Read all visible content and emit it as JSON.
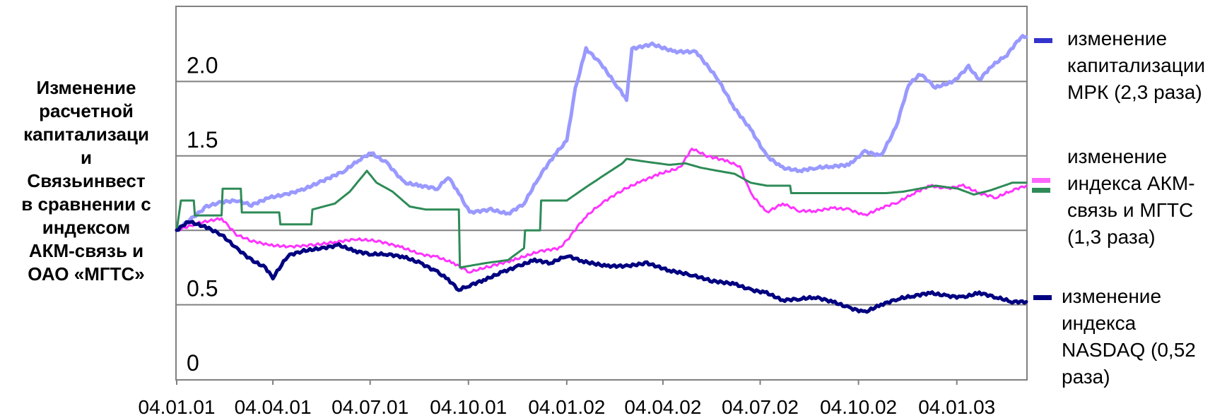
{
  "chart_data": {
    "type": "line",
    "ylabel": "Изменение\nрасчетной\nкапитализаци\nи\nСвязьинвест\nв сравнении с\nиндексом\nАКМ-связь и\nОАО «МГТС»",
    "ylim": [
      0,
      2.5
    ],
    "ytick_labels": [
      "0",
      "0.5",
      "1.5",
      "2.0"
    ],
    "ytick_values": [
      0,
      0.5,
      1.5,
      2.0
    ],
    "gridlines_at": [
      0.5,
      1.0,
      1.5,
      2.0
    ],
    "grid": true,
    "xlim": [
      "2001-01-04",
      "2003-03-10"
    ],
    "x_ticks": [
      "2001-01-04",
      "2001-04-04",
      "2001-07-04",
      "2001-10-04",
      "2002-01-04",
      "2002-04-04",
      "2002-07-04",
      "2002-10-04",
      "2003-01-04"
    ],
    "x_tick_labels": [
      "04.01.01",
      "04.04.01",
      "04.07.01",
      "04.10.01",
      "04.01.02",
      "04.04.02",
      "04.07.02",
      "04.10.02",
      "04.01.03"
    ],
    "legend_placement": "right",
    "legend": [
      {
        "text": "изменение\nкапитализации\nМРК (2,3 раза)",
        "color": "#3333cc"
      },
      {
        "text": "изменение\nиндекса АКМ-\nсвязь и МГТС\n(1,3 раза)",
        "color": "#ff66ff",
        "color2": "#2e8b57"
      },
      {
        "text": "изменение\nиндекса\nNASDAQ (0,52\nраза)",
        "color": "#000080"
      }
    ],
    "series": [
      {
        "color": "#9999ff",
        "stroke": "light-blue",
        "points": [
          [
            "2001-01-04",
            1.0
          ],
          [
            "2001-01-18",
            1.08
          ],
          [
            "2001-02-01",
            1.16
          ],
          [
            "2001-02-15",
            1.19
          ],
          [
            "2001-03-01",
            1.2
          ],
          [
            "2001-03-15",
            1.17
          ],
          [
            "2001-04-01",
            1.22
          ],
          [
            "2001-04-15",
            1.24
          ],
          [
            "2001-05-01",
            1.27
          ],
          [
            "2001-05-20",
            1.33
          ],
          [
            "2001-06-10",
            1.4
          ],
          [
            "2001-06-25",
            1.48
          ],
          [
            "2001-07-05",
            1.52
          ],
          [
            "2001-07-20",
            1.45
          ],
          [
            "2001-08-05",
            1.32
          ],
          [
            "2001-08-20",
            1.3
          ],
          [
            "2001-09-05",
            1.28
          ],
          [
            "2001-09-15",
            1.36
          ],
          [
            "2001-09-25",
            1.25
          ],
          [
            "2001-10-05",
            1.12
          ],
          [
            "2001-10-25",
            1.14
          ],
          [
            "2001-11-10",
            1.11
          ],
          [
            "2001-11-25",
            1.18
          ],
          [
            "2001-12-10",
            1.37
          ],
          [
            "2001-12-25",
            1.52
          ],
          [
            "2002-01-04",
            1.6
          ],
          [
            "2002-01-12",
            1.95
          ],
          [
            "2002-01-22",
            2.22
          ],
          [
            "2002-02-05",
            2.12
          ],
          [
            "2002-02-20",
            1.97
          ],
          [
            "2002-03-01",
            1.88
          ],
          [
            "2002-03-06",
            2.22
          ],
          [
            "2002-03-25",
            2.25
          ],
          [
            "2002-04-15",
            2.2
          ],
          [
            "2002-05-05",
            2.2
          ],
          [
            "2002-05-25",
            2.02
          ],
          [
            "2002-06-10",
            1.82
          ],
          [
            "2002-06-25",
            1.68
          ],
          [
            "2002-07-10",
            1.5
          ],
          [
            "2002-07-25",
            1.42
          ],
          [
            "2002-08-10",
            1.4
          ],
          [
            "2002-08-25",
            1.42
          ],
          [
            "2002-09-10",
            1.43
          ],
          [
            "2002-09-25",
            1.44
          ],
          [
            "2002-10-10",
            1.53
          ],
          [
            "2002-10-25",
            1.5
          ],
          [
            "2002-11-08",
            1.69
          ],
          [
            "2002-11-20",
            1.98
          ],
          [
            "2002-12-01",
            2.05
          ],
          [
            "2002-12-15",
            1.96
          ],
          [
            "2003-01-01",
            2.0
          ],
          [
            "2003-01-15",
            2.1
          ],
          [
            "2003-01-25",
            2.01
          ],
          [
            "2003-02-05",
            2.1
          ],
          [
            "2003-02-20",
            2.18
          ],
          [
            "2003-03-05",
            2.3
          ],
          [
            "2003-03-10",
            2.3
          ]
        ]
      },
      {
        "color": "#ff33ff",
        "stroke": "magenta",
        "points": [
          [
            "2001-01-04",
            1.0
          ],
          [
            "2001-01-25",
            1.05
          ],
          [
            "2001-02-15",
            1.08
          ],
          [
            "2001-03-01",
            0.97
          ],
          [
            "2001-03-15",
            0.93
          ],
          [
            "2001-04-01",
            0.9
          ],
          [
            "2001-04-20",
            0.89
          ],
          [
            "2001-05-10",
            0.9
          ],
          [
            "2001-06-01",
            0.92
          ],
          [
            "2001-06-20",
            0.94
          ],
          [
            "2001-07-10",
            0.93
          ],
          [
            "2001-08-01",
            0.89
          ],
          [
            "2001-08-20",
            0.84
          ],
          [
            "2001-09-05",
            0.82
          ],
          [
            "2001-09-20",
            0.78
          ],
          [
            "2001-10-05",
            0.72
          ],
          [
            "2001-10-25",
            0.76
          ],
          [
            "2001-11-15",
            0.8
          ],
          [
            "2001-12-10",
            0.86
          ],
          [
            "2001-12-28",
            0.88
          ],
          [
            "2002-01-04",
            0.93
          ],
          [
            "2002-01-20",
            1.08
          ],
          [
            "2002-02-05",
            1.18
          ],
          [
            "2002-02-25",
            1.27
          ],
          [
            "2002-03-15",
            1.33
          ],
          [
            "2002-04-01",
            1.38
          ],
          [
            "2002-04-20",
            1.42
          ],
          [
            "2002-05-01",
            1.55
          ],
          [
            "2002-05-15",
            1.5
          ],
          [
            "2002-06-01",
            1.47
          ],
          [
            "2002-06-15",
            1.43
          ],
          [
            "2002-06-25",
            1.25
          ],
          [
            "2002-07-10",
            1.12
          ],
          [
            "2002-07-25",
            1.18
          ],
          [
            "2002-08-10",
            1.13
          ],
          [
            "2002-08-25",
            1.13
          ],
          [
            "2002-09-10",
            1.15
          ],
          [
            "2002-09-25",
            1.14
          ],
          [
            "2002-10-10",
            1.1
          ],
          [
            "2002-10-25",
            1.15
          ],
          [
            "2002-11-10",
            1.19
          ],
          [
            "2002-11-25",
            1.25
          ],
          [
            "2002-12-10",
            1.3
          ],
          [
            "2002-12-25",
            1.28
          ],
          [
            "2003-01-10",
            1.3
          ],
          [
            "2003-01-25",
            1.25
          ],
          [
            "2003-02-10",
            1.22
          ],
          [
            "2003-02-25",
            1.27
          ],
          [
            "2003-03-10",
            1.3
          ]
        ]
      },
      {
        "color": "#2e8b57",
        "stroke": "green",
        "points": [
          [
            "2001-01-04",
            1.0
          ],
          [
            "2001-01-08",
            1.2
          ],
          [
            "2001-01-20",
            1.2
          ],
          [
            "2001-01-21",
            1.1
          ],
          [
            "2001-02-15",
            1.1
          ],
          [
            "2001-02-16",
            1.28
          ],
          [
            "2001-03-05",
            1.28
          ],
          [
            "2001-03-06",
            1.12
          ],
          [
            "2001-04-10",
            1.12
          ],
          [
            "2001-04-11",
            1.04
          ],
          [
            "2001-05-10",
            1.04
          ],
          [
            "2001-05-11",
            1.14
          ],
          [
            "2001-06-01",
            1.18
          ],
          [
            "2001-06-15",
            1.26
          ],
          [
            "2001-07-01",
            1.4
          ],
          [
            "2001-07-10",
            1.32
          ],
          [
            "2001-07-25",
            1.26
          ],
          [
            "2001-08-10",
            1.16
          ],
          [
            "2001-08-25",
            1.14
          ],
          [
            "2001-09-10",
            1.14
          ],
          [
            "2001-09-25",
            1.14
          ],
          [
            "2001-09-26",
            0.75
          ],
          [
            "2001-10-20",
            0.78
          ],
          [
            "2001-11-10",
            0.8
          ],
          [
            "2001-11-25",
            0.88
          ],
          [
            "2001-11-26",
            1.0
          ],
          [
            "2001-12-10",
            1.0
          ],
          [
            "2001-12-11",
            1.2
          ],
          [
            "2002-01-04",
            1.2
          ],
          [
            "2002-01-20",
            1.28
          ],
          [
            "2002-02-10",
            1.38
          ],
          [
            "2002-02-25",
            1.45
          ],
          [
            "2002-03-01",
            1.48
          ],
          [
            "2002-03-20",
            1.46
          ],
          [
            "2002-04-10",
            1.44
          ],
          [
            "2002-04-25",
            1.45
          ],
          [
            "2002-05-10",
            1.42
          ],
          [
            "2002-05-25",
            1.4
          ],
          [
            "2002-06-10",
            1.38
          ],
          [
            "2002-06-25",
            1.32
          ],
          [
            "2002-07-10",
            1.3
          ],
          [
            "2002-08-01",
            1.3
          ],
          [
            "2002-08-02",
            1.25
          ],
          [
            "2002-09-20",
            1.25
          ],
          [
            "2002-10-15",
            1.25
          ],
          [
            "2002-10-30",
            1.25
          ],
          [
            "2002-11-15",
            1.26
          ],
          [
            "2002-11-30",
            1.28
          ],
          [
            "2002-12-15",
            1.3
          ],
          [
            "2003-01-05",
            1.28
          ],
          [
            "2003-01-20",
            1.24
          ],
          [
            "2003-02-05",
            1.27
          ],
          [
            "2003-02-25",
            1.32
          ],
          [
            "2003-03-10",
            1.32
          ]
        ]
      },
      {
        "color": "#000080",
        "stroke": "navy",
        "points": [
          [
            "2001-01-04",
            1.0
          ],
          [
            "2001-01-15",
            1.06
          ],
          [
            "2001-02-01",
            1.02
          ],
          [
            "2001-02-15",
            0.97
          ],
          [
            "2001-03-01",
            0.88
          ],
          [
            "2001-03-15",
            0.8
          ],
          [
            "2001-03-28",
            0.75
          ],
          [
            "2001-04-04",
            0.68
          ],
          [
            "2001-04-18",
            0.83
          ],
          [
            "2001-05-01",
            0.86
          ],
          [
            "2001-05-20",
            0.88
          ],
          [
            "2001-06-05",
            0.9
          ],
          [
            "2001-06-20",
            0.86
          ],
          [
            "2001-07-05",
            0.84
          ],
          [
            "2001-07-20",
            0.84
          ],
          [
            "2001-08-05",
            0.82
          ],
          [
            "2001-08-20",
            0.78
          ],
          [
            "2001-09-05",
            0.72
          ],
          [
            "2001-09-15",
            0.67
          ],
          [
            "2001-09-25",
            0.6
          ],
          [
            "2001-10-05",
            0.63
          ],
          [
            "2001-10-20",
            0.67
          ],
          [
            "2001-11-05",
            0.72
          ],
          [
            "2001-11-20",
            0.76
          ],
          [
            "2001-12-05",
            0.8
          ],
          [
            "2001-12-20",
            0.78
          ],
          [
            "2002-01-04",
            0.83
          ],
          [
            "2002-01-20",
            0.79
          ],
          [
            "2002-02-10",
            0.76
          ],
          [
            "2002-03-01",
            0.76
          ],
          [
            "2002-03-20",
            0.78
          ],
          [
            "2002-04-10",
            0.73
          ],
          [
            "2002-05-01",
            0.7
          ],
          [
            "2002-05-20",
            0.66
          ],
          [
            "2002-06-10",
            0.64
          ],
          [
            "2002-06-25",
            0.6
          ],
          [
            "2002-07-10",
            0.58
          ],
          [
            "2002-07-25",
            0.53
          ],
          [
            "2002-08-10",
            0.54
          ],
          [
            "2002-08-25",
            0.55
          ],
          [
            "2002-09-10",
            0.52
          ],
          [
            "2002-09-25",
            0.48
          ],
          [
            "2002-10-10",
            0.45
          ],
          [
            "2002-10-25",
            0.5
          ],
          [
            "2002-11-10",
            0.54
          ],
          [
            "2002-11-25",
            0.56
          ],
          [
            "2002-12-10",
            0.58
          ],
          [
            "2002-12-25",
            0.56
          ],
          [
            "2003-01-10",
            0.55
          ],
          [
            "2003-01-25",
            0.58
          ],
          [
            "2003-02-10",
            0.55
          ],
          [
            "2003-02-25",
            0.52
          ],
          [
            "2003-03-10",
            0.52
          ]
        ]
      }
    ]
  }
}
